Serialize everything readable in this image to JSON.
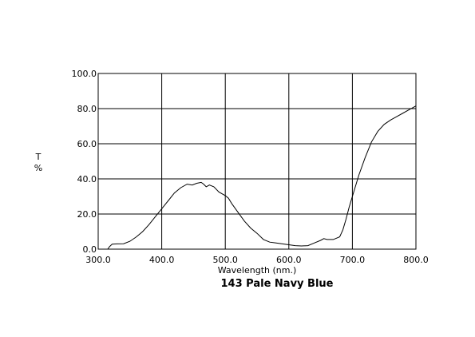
{
  "chart_data": {
    "type": "line",
    "title": "143 Pale Navy Blue",
    "xlabel": "Wavelength (nm.)",
    "ylabel_lines": [
      "T",
      "%"
    ],
    "xlim": [
      300,
      800
    ],
    "ylim": [
      0,
      100
    ],
    "grid": true,
    "x_ticks": [
      300,
      400,
      500,
      600,
      700,
      800
    ],
    "x_tick_labels": [
      "300.0",
      "400.0",
      "500.0",
      "600.0",
      "700.0",
      "800.0"
    ],
    "y_ticks": [
      0,
      20,
      40,
      60,
      80,
      100
    ],
    "y_tick_labels": [
      "0.0",
      "20.0",
      "40.0",
      "60.0",
      "80.0",
      "100.0"
    ],
    "series": [
      {
        "color": "#000000",
        "x": [
          315,
          318,
          322,
          330,
          340,
          350,
          360,
          370,
          380,
          390,
          400,
          410,
          420,
          430,
          440,
          448,
          455,
          462,
          466,
          470,
          475,
          482,
          490,
          500,
          505,
          510,
          520,
          530,
          540,
          550,
          560,
          570,
          580,
          590,
          600,
          610,
          620,
          630,
          640,
          650,
          655,
          660,
          665,
          670,
          680,
          685,
          690,
          695,
          700,
          710,
          720,
          730,
          740,
          750,
          760,
          770,
          780,
          790,
          800
        ],
        "y": [
          0,
          1.5,
          2.8,
          3.0,
          3.1,
          4.5,
          7.0,
          10.0,
          14.0,
          18.5,
          23.0,
          27.5,
          32.0,
          35.0,
          37.0,
          36.5,
          37.5,
          38.0,
          37.0,
          35.5,
          36.5,
          35.5,
          32.5,
          30.5,
          29.0,
          26.0,
          21.0,
          16.0,
          12.0,
          9.0,
          5.5,
          4.0,
          3.5,
          3.0,
          2.5,
          2.0,
          1.8,
          2.0,
          3.5,
          5.0,
          6.0,
          5.5,
          5.5,
          5.5,
          7.0,
          11.0,
          17.0,
          24.0,
          30.0,
          42.0,
          52.0,
          61.0,
          67.0,
          71.0,
          73.5,
          75.5,
          77.5,
          79.5,
          81.5
        ]
      }
    ]
  }
}
